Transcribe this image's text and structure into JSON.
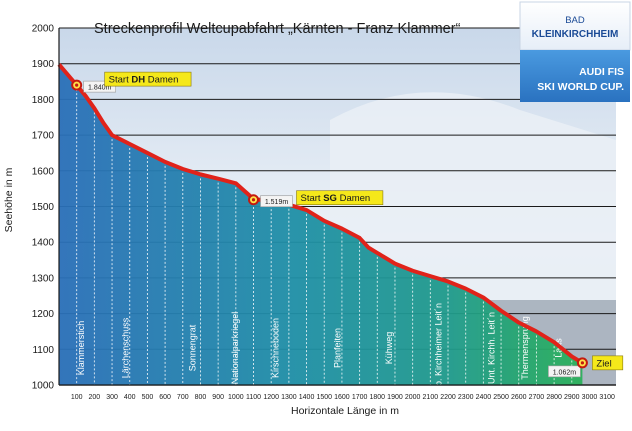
{
  "chart_data": {
    "type": "area",
    "title": "Streckenprofil Weltcupabfahrt „Kärnten - Franz Klammer“",
    "xlabel": "Horizontale Länge in m",
    "ylabel": "Seehöhe in m",
    "xlim": [
      0,
      3150
    ],
    "ylim": [
      1000,
      2000
    ],
    "x_ticks": [
      100,
      200,
      300,
      400,
      500,
      600,
      700,
      800,
      900,
      1000,
      1100,
      1200,
      1300,
      1400,
      1500,
      1600,
      1700,
      1800,
      1900,
      2000,
      2100,
      2200,
      2300,
      2400,
      2500,
      2600,
      2700,
      2800,
      2900,
      3000,
      3100
    ],
    "y_ticks": [
      1000,
      1100,
      1200,
      1300,
      1400,
      1500,
      1600,
      1700,
      1800,
      1900,
      2000
    ],
    "grid": "horizontal",
    "profile": [
      {
        "x": 0,
        "y": 1898
      },
      {
        "x": 100,
        "y": 1840
      },
      {
        "x": 150,
        "y": 1810
      },
      {
        "x": 200,
        "y": 1775
      },
      {
        "x": 250,
        "y": 1735
      },
      {
        "x": 300,
        "y": 1700
      },
      {
        "x": 400,
        "y": 1675
      },
      {
        "x": 500,
        "y": 1650
      },
      {
        "x": 600,
        "y": 1625
      },
      {
        "x": 700,
        "y": 1605
      },
      {
        "x": 800,
        "y": 1590
      },
      {
        "x": 900,
        "y": 1578
      },
      {
        "x": 1000,
        "y": 1565
      },
      {
        "x": 1100,
        "y": 1521
      },
      {
        "x": 1200,
        "y": 1515
      },
      {
        "x": 1300,
        "y": 1505
      },
      {
        "x": 1400,
        "y": 1490
      },
      {
        "x": 1500,
        "y": 1460
      },
      {
        "x": 1600,
        "y": 1438
      },
      {
        "x": 1700,
        "y": 1412
      },
      {
        "x": 1750,
        "y": 1385
      },
      {
        "x": 1800,
        "y": 1370
      },
      {
        "x": 1850,
        "y": 1355
      },
      {
        "x": 1900,
        "y": 1340
      },
      {
        "x": 2000,
        "y": 1320
      },
      {
        "x": 2100,
        "y": 1305
      },
      {
        "x": 2200,
        "y": 1290
      },
      {
        "x": 2300,
        "y": 1270
      },
      {
        "x": 2400,
        "y": 1245
      },
      {
        "x": 2500,
        "y": 1208
      },
      {
        "x": 2600,
        "y": 1175
      },
      {
        "x": 2700,
        "y": 1150
      },
      {
        "x": 2800,
        "y": 1120
      },
      {
        "x": 2900,
        "y": 1080
      },
      {
        "x": 2960,
        "y": 1062
      }
    ],
    "markers": [
      {
        "x": 100,
        "y": 1840,
        "value_label": "1.840m",
        "callout": "Start DH Damen",
        "callout_parts": [
          "Start ",
          "DH",
          " Damen"
        ]
      },
      {
        "x": 1100,
        "y": 1519,
        "value_label": "1.519m",
        "callout": "Start SG Damen",
        "callout_parts": [
          "Start ",
          "SG",
          " Damen"
        ]
      },
      {
        "x": 2960,
        "y": 1062,
        "value_label": "1.062m",
        "callout": "Ziel",
        "callout_parts": [
          "Ziel",
          "",
          ""
        ]
      }
    ],
    "sections": [
      {
        "label": "Klammerstich",
        "x": 120
      },
      {
        "label": "Lärchenschuss",
        "x": 370
      },
      {
        "label": "Sonnengrat",
        "x": 750
      },
      {
        "label": "Nationalparkriegel",
        "x": 990
      },
      {
        "label": "Kirschneboden",
        "x": 1220
      },
      {
        "label": "Planfeiten",
        "x": 1570
      },
      {
        "label": "Kühweg",
        "x": 1860
      },
      {
        "label": "Ob. Kirchheimer Leit´n",
        "x": 2140
      },
      {
        "label": "Unt. Kirchh. Leit´n",
        "x": 2440
      },
      {
        "label": "Thermensprung",
        "x": 2630
      },
      {
        "label": "Laas",
        "x": 2820
      }
    ]
  },
  "brand": {
    "top_line1": "BAD",
    "top_line2": "KLEINKIRCHHEIM",
    "bottom_line1": "AUDI FIS",
    "bottom_line2": "SKI WORLD CUP."
  },
  "colors": {
    "profile_line": "#e0231a",
    "area_top": "#2a6fb8",
    "area_mid": "#1f9a8a",
    "area_end": "#2bb15a",
    "callout_bg": "#f5e81a",
    "brand_dark": "#1a4a96",
    "brand_light": "#3d8fd8"
  }
}
